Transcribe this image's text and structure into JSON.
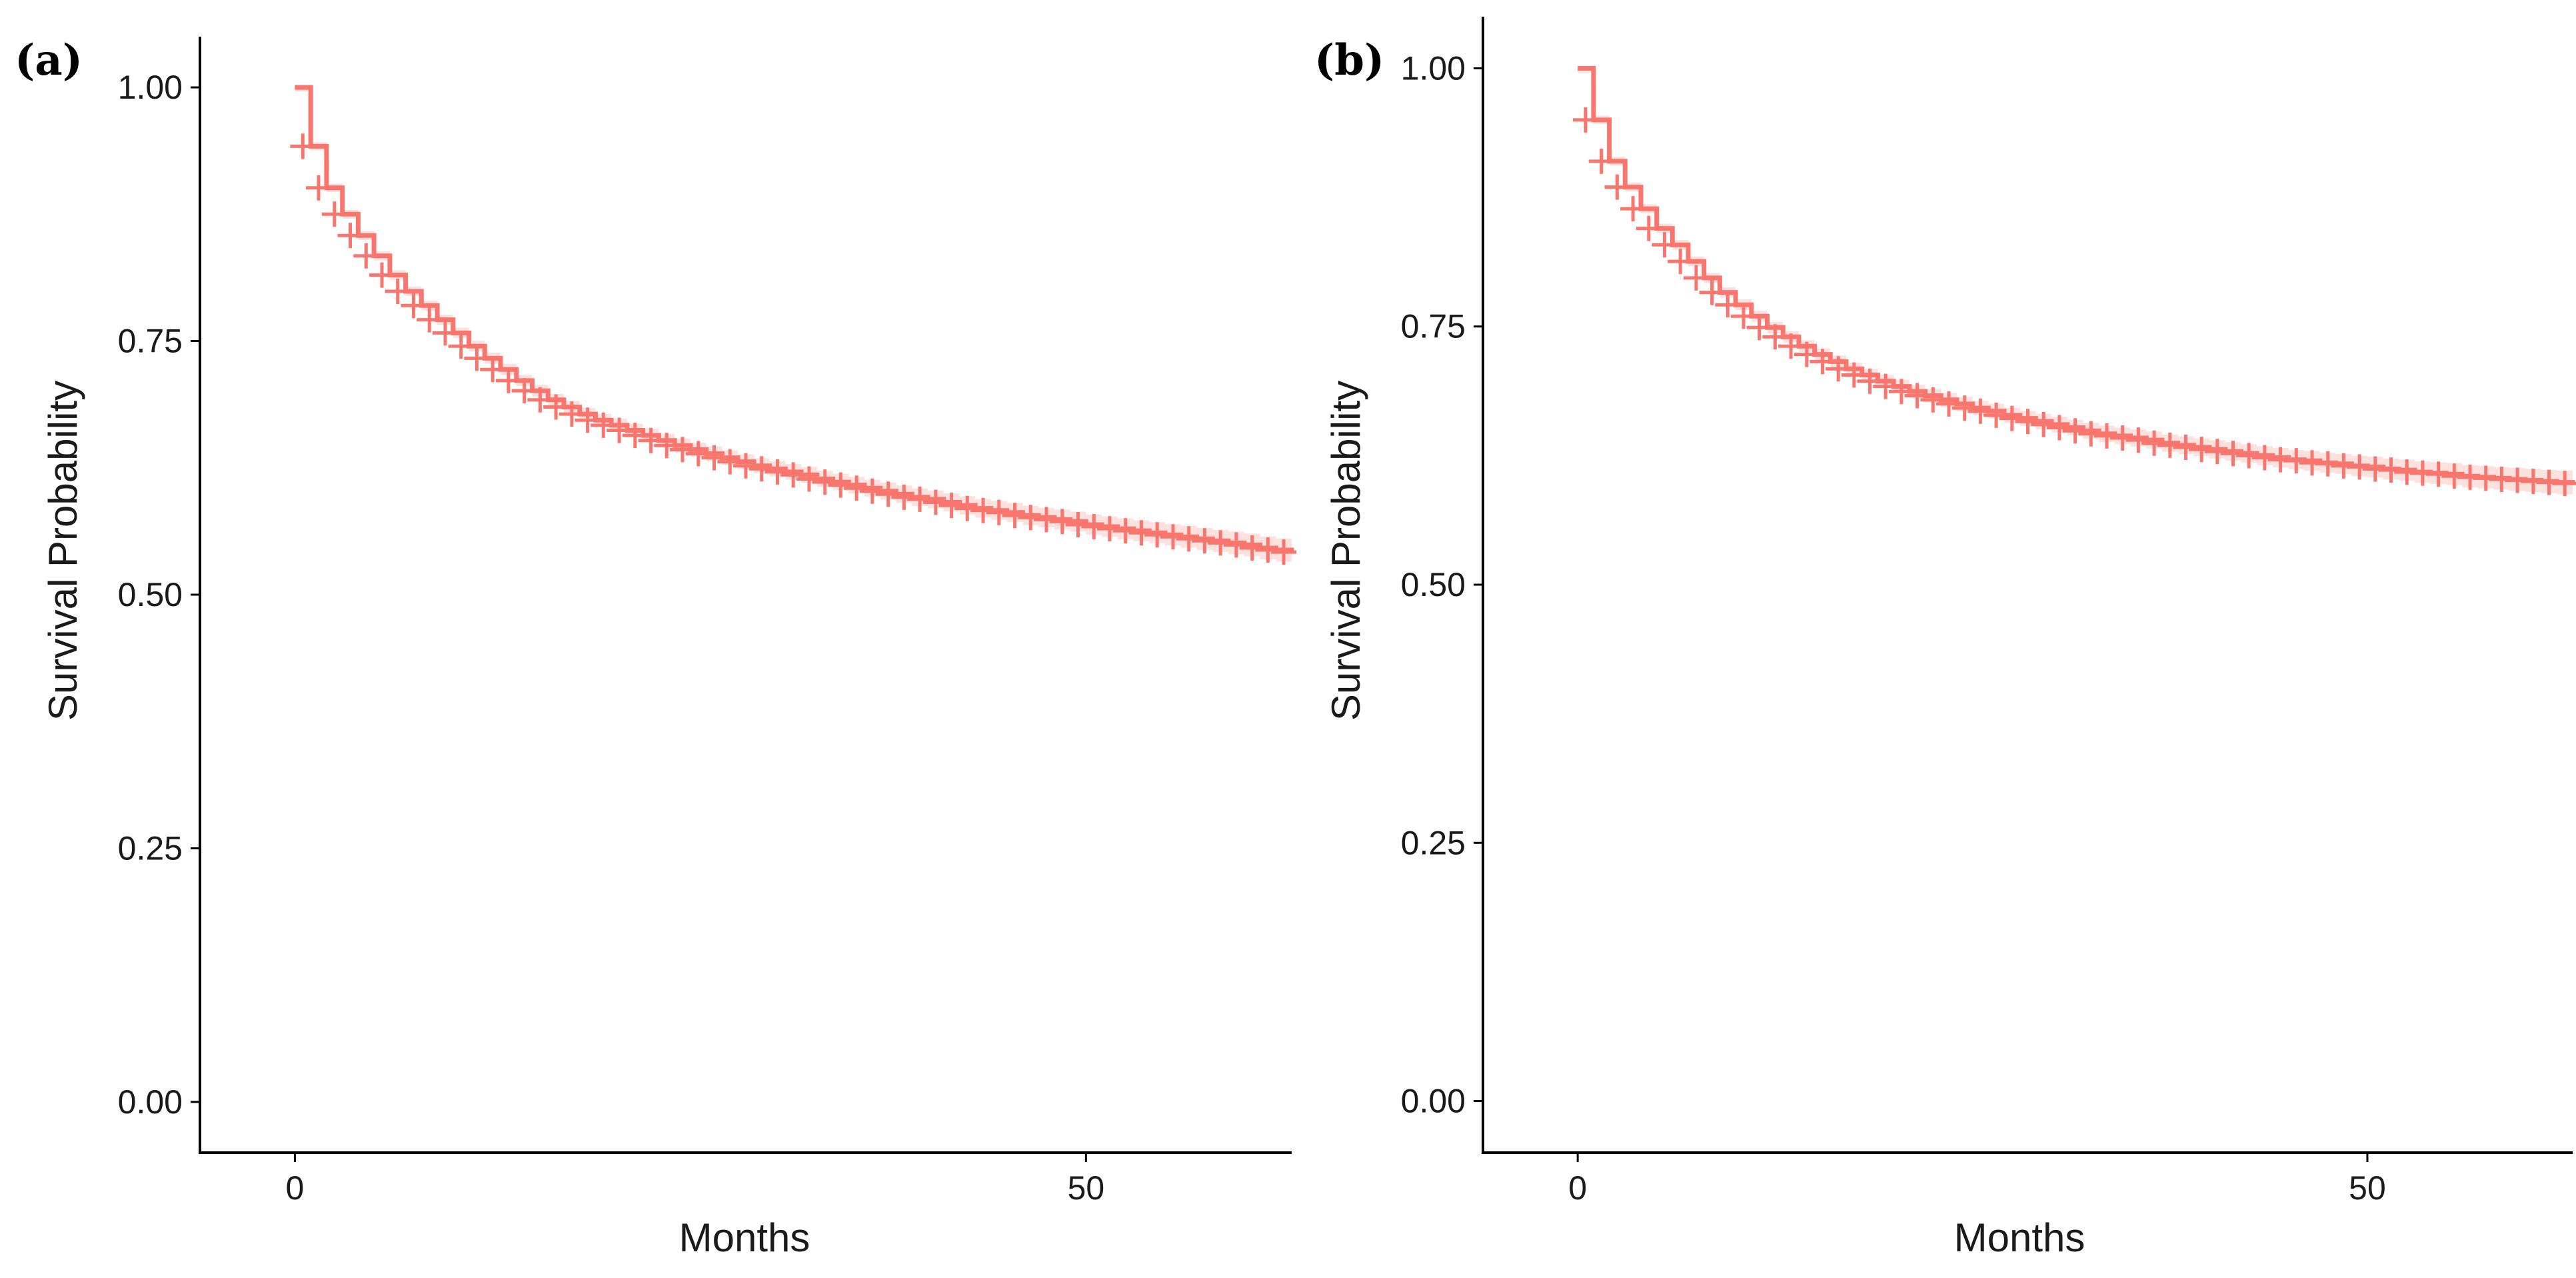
{
  "colors": {
    "curve": "#F8766D",
    "ci_band": "#F8766D",
    "axis": "#000000",
    "background": "#FFFFFF"
  },
  "chart_data": [
    {
      "type": "line",
      "subtype": "kaplan-meier step curve with censor marks",
      "panel_label": "(a)",
      "title": "",
      "xlabel": "Months",
      "ylabel": "Survival Probability",
      "xlim": [
        -6,
        63
      ],
      "ylim": [
        -0.05,
        1.05
      ],
      "x_ticks": [
        0,
        50
      ],
      "x_tick_labels": [
        "0",
        "50"
      ],
      "y_ticks": [
        0,
        0.25,
        0.5,
        0.75,
        1
      ],
      "y_tick_labels": [
        "0.00",
        "0.25",
        "0.50",
        "0.75",
        "1.00"
      ],
      "grid": false,
      "legend": "none",
      "series": [
        {
          "name": "Survival",
          "x": [
            0,
            1,
            2,
            3,
            4,
            5,
            6,
            7,
            8,
            9,
            10,
            11,
            12,
            13,
            14,
            15,
            16,
            17,
            18,
            19,
            20,
            21,
            22,
            23,
            24,
            25,
            26,
            27,
            28,
            29,
            30,
            31,
            32,
            33,
            34,
            35,
            36,
            37,
            38,
            39,
            40,
            41,
            42,
            43,
            44,
            45,
            46,
            47,
            48,
            49,
            50,
            51,
            52,
            53,
            54,
            55,
            56,
            57,
            58,
            59,
            60,
            61,
            62,
            63
          ],
          "y": [
            1.0,
            0.942,
            0.901,
            0.875,
            0.854,
            0.834,
            0.815,
            0.799,
            0.785,
            0.771,
            0.758,
            0.745,
            0.733,
            0.722,
            0.711,
            0.701,
            0.692,
            0.685,
            0.678,
            0.672,
            0.667,
            0.662,
            0.657,
            0.652,
            0.647,
            0.643,
            0.639,
            0.635,
            0.631,
            0.627,
            0.624,
            0.621,
            0.618,
            0.614,
            0.611,
            0.608,
            0.605,
            0.602,
            0.599,
            0.596,
            0.594,
            0.591,
            0.588,
            0.585,
            0.583,
            0.581,
            0.578,
            0.576,
            0.574,
            0.572,
            0.569,
            0.567,
            0.565,
            0.563,
            0.561,
            0.559,
            0.557,
            0.555,
            0.553,
            0.551,
            0.549,
            0.546,
            0.544,
            0.542
          ]
        }
      ]
    },
    {
      "type": "line",
      "subtype": "kaplan-meier step curve with censor marks",
      "panel_label": "(b)",
      "title": "",
      "xlabel": "Months",
      "ylabel": "Survival Probability",
      "xlim": [
        -6,
        63
      ],
      "ylim": [
        -0.05,
        1.05
      ],
      "x_ticks": [
        0,
        50
      ],
      "x_tick_labels": [
        "0",
        "50"
      ],
      "y_ticks": [
        0,
        0.25,
        0.5,
        0.75,
        1
      ],
      "y_tick_labels": [
        "0.00",
        "0.25",
        "0.50",
        "0.75",
        "1.00"
      ],
      "grid": false,
      "legend": "none",
      "series": [
        {
          "name": "Survival",
          "x": [
            0,
            1,
            2,
            3,
            4,
            5,
            6,
            7,
            8,
            9,
            10,
            11,
            12,
            13,
            14,
            15,
            16,
            17,
            18,
            19,
            20,
            21,
            22,
            23,
            24,
            25,
            26,
            27,
            28,
            29,
            30,
            31,
            32,
            33,
            34,
            35,
            36,
            37,
            38,
            39,
            40,
            41,
            42,
            43,
            44,
            45,
            46,
            47,
            48,
            49,
            50,
            51,
            52,
            53,
            54,
            55,
            56,
            57,
            58,
            59,
            60,
            61,
            62,
            63
          ],
          "y": [
            1.0,
            0.95,
            0.91,
            0.885,
            0.864,
            0.845,
            0.829,
            0.813,
            0.797,
            0.783,
            0.771,
            0.76,
            0.749,
            0.74,
            0.731,
            0.723,
            0.716,
            0.709,
            0.703,
            0.697,
            0.692,
            0.687,
            0.683,
            0.679,
            0.675,
            0.671,
            0.668,
            0.664,
            0.661,
            0.658,
            0.655,
            0.652,
            0.649,
            0.646,
            0.644,
            0.642,
            0.64,
            0.637,
            0.635,
            0.633,
            0.631,
            0.629,
            0.627,
            0.625,
            0.623,
            0.621,
            0.62,
            0.618,
            0.617,
            0.615,
            0.614,
            0.612,
            0.611,
            0.609,
            0.608,
            0.607,
            0.605,
            0.604,
            0.603,
            0.602,
            0.601,
            0.6,
            0.599,
            0.598
          ]
        }
      ]
    }
  ]
}
